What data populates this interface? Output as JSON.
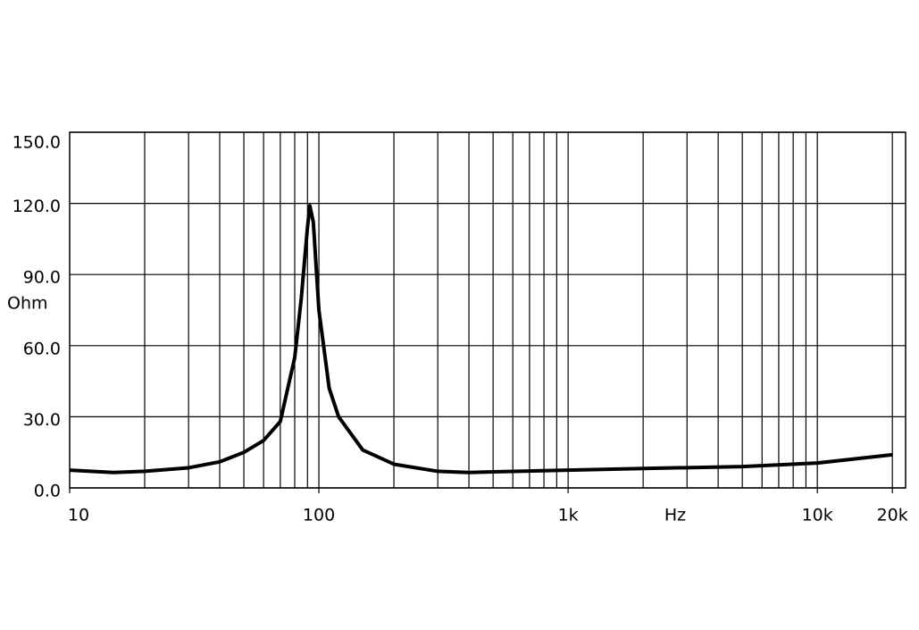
{
  "chart_data": {
    "type": "line",
    "ylabel": "Ohm",
    "xlabel": "Hz",
    "xscale": "log",
    "x": [
      10,
      15,
      20,
      30,
      40,
      50,
      60,
      70,
      80,
      85,
      90,
      92,
      95,
      100,
      110,
      120,
      150,
      200,
      300,
      400,
      500,
      1000,
      2000,
      5000,
      10000,
      20000
    ],
    "series": [
      {
        "color": "#000000",
        "values": [
          7.5,
          6.5,
          7,
          8.5,
          11,
          15,
          20,
          28,
          55,
          80,
          110,
          119,
          112,
          75,
          42,
          30,
          16,
          10,
          7,
          6.5,
          6.8,
          7.5,
          8.2,
          9,
          10.5,
          14
        ]
      }
    ],
    "xlim": [
      10,
      22600
    ],
    "ylim": [
      0,
      150
    ],
    "xticks": [
      10,
      100,
      {
        "value": 1000,
        "label": "1k"
      },
      {
        "value": 10000,
        "label": "10k"
      },
      {
        "value": 20000,
        "label": "20k"
      }
    ],
    "xgrid": [
      20,
      30,
      40,
      50,
      60,
      70,
      80,
      90,
      100,
      200,
      300,
      400,
      500,
      600,
      700,
      800,
      900,
      1000,
      2000,
      3000,
      4000,
      5000,
      6000,
      7000,
      8000,
      9000,
      10000,
      20000
    ],
    "yticks": [
      {
        "value": 0,
        "label": "0.0"
      },
      {
        "value": 30,
        "label": "30.0"
      },
      {
        "value": 60,
        "label": "60.0"
      },
      {
        "value": 90,
        "label": "90.0"
      },
      {
        "value": 120,
        "label": "120.0"
      },
      {
        "value": 150,
        "label": "150.0"
      }
    ],
    "grid": true
  }
}
